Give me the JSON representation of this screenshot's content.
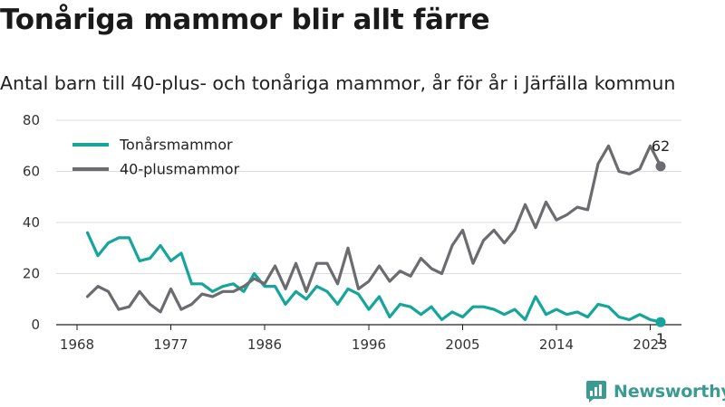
{
  "title": "Tonåriga mammor blir allt färre",
  "subtitle": "Antal barn till 40-plus- och tonåriga mammor, år för år i Järfälla kommun",
  "brand": {
    "name": "Newsworthy",
    "icon": "newsworthy-logo-icon"
  },
  "colors": {
    "teen": "#16a59b",
    "forty": "#6b6b70",
    "grid": "#dddddd",
    "brand": "#3a9b90"
  },
  "chart_data": {
    "type": "line",
    "title": "Tonåriga mammor blir allt färre",
    "subtitle": "Antal barn till 40-plus- och tonåriga mammor, år för år i Järfälla kommun",
    "xlabel": "",
    "ylabel": "",
    "xlim": [
      1968,
      2024
    ],
    "ylim": [
      0,
      80
    ],
    "x_ticks": [
      "1968",
      "1977",
      "1986",
      "1996",
      "2005",
      "2014",
      "2023"
    ],
    "y_ticks": [
      "0",
      "20",
      "40",
      "60",
      "80"
    ],
    "grid": "horizontal",
    "legend_position": "top-left",
    "x": [
      1969,
      1970,
      1971,
      1972,
      1973,
      1974,
      1975,
      1976,
      1977,
      1978,
      1979,
      1980,
      1981,
      1982,
      1983,
      1984,
      1985,
      1986,
      1987,
      1988,
      1989,
      1990,
      1991,
      1992,
      1993,
      1994,
      1995,
      1996,
      1997,
      1998,
      1999,
      2000,
      2001,
      2002,
      2003,
      2004,
      2005,
      2006,
      2007,
      2008,
      2009,
      2010,
      2011,
      2012,
      2013,
      2014,
      2015,
      2016,
      2017,
      2018,
      2019,
      2020,
      2021,
      2022,
      2023,
      2024
    ],
    "series": [
      {
        "name": "Tonårsmammor",
        "color": "#16a59b",
        "values": [
          36,
          27,
          32,
          34,
          34,
          25,
          26,
          31,
          25,
          28,
          16,
          16,
          13,
          15,
          16,
          13,
          20,
          15,
          15,
          8,
          13,
          10,
          15,
          13,
          8,
          14,
          12,
          6,
          11,
          3,
          8,
          7,
          4,
          7,
          2,
          5,
          3,
          7,
          7,
          6,
          4,
          6,
          2,
          11,
          4,
          6,
          4,
          5,
          3,
          8,
          7,
          3,
          2,
          4,
          2,
          1
        ],
        "end_label": "1"
      },
      {
        "name": "40-plusmammor",
        "color": "#6b6b70",
        "values": [
          11,
          15,
          13,
          6,
          7,
          13,
          8,
          5,
          14,
          6,
          8,
          12,
          11,
          13,
          13,
          15,
          18,
          16,
          23,
          14,
          24,
          13,
          24,
          24,
          16,
          30,
          14,
          17,
          23,
          17,
          21,
          19,
          26,
          22,
          20,
          31,
          37,
          24,
          33,
          37,
          32,
          37,
          47,
          38,
          48,
          41,
          43,
          46,
          45,
          63,
          70,
          60,
          59,
          61,
          70,
          62
        ],
        "end_label": "62"
      }
    ]
  }
}
